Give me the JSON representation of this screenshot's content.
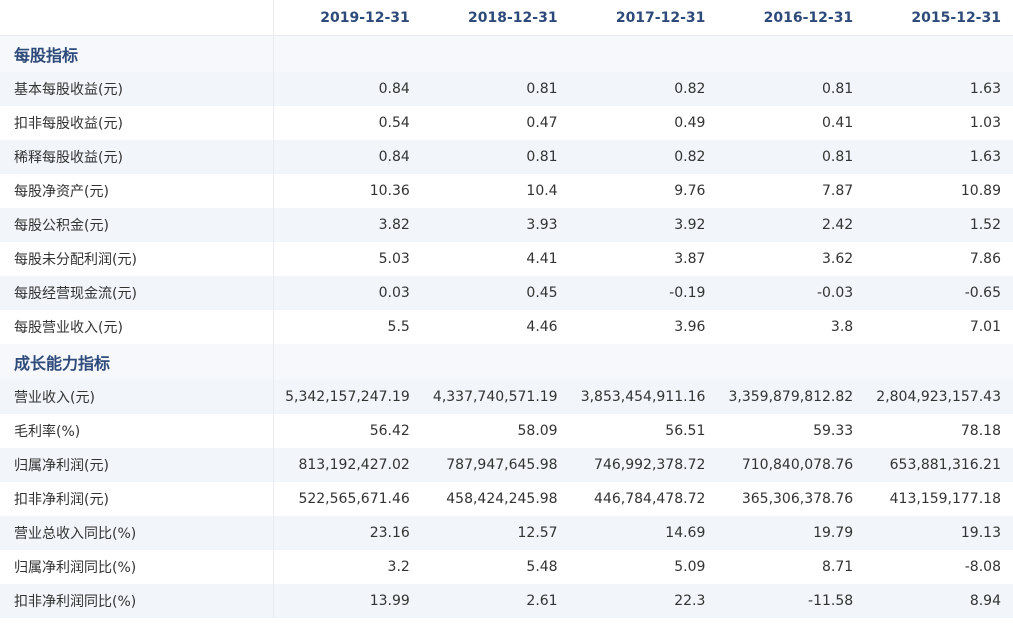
{
  "columns": [
    "2019-12-31",
    "2018-12-31",
    "2017-12-31",
    "2016-12-31",
    "2015-12-31"
  ],
  "sections": [
    {
      "title": "每股指标",
      "rows": [
        {
          "label": "基本每股收益(元)",
          "values": [
            "0.84",
            "0.81",
            "0.82",
            "0.81",
            "1.63"
          ]
        },
        {
          "label": "扣非每股收益(元)",
          "values": [
            "0.54",
            "0.47",
            "0.49",
            "0.41",
            "1.03"
          ]
        },
        {
          "label": "稀释每股收益(元)",
          "values": [
            "0.84",
            "0.81",
            "0.82",
            "0.81",
            "1.63"
          ]
        },
        {
          "label": "每股净资产(元)",
          "values": [
            "10.36",
            "10.4",
            "9.76",
            "7.87",
            "10.89"
          ]
        },
        {
          "label": "每股公积金(元)",
          "values": [
            "3.82",
            "3.93",
            "3.92",
            "2.42",
            "1.52"
          ]
        },
        {
          "label": "每股未分配利润(元)",
          "values": [
            "5.03",
            "4.41",
            "3.87",
            "3.62",
            "7.86"
          ]
        },
        {
          "label": "每股经营现金流(元)",
          "values": [
            "0.03",
            "0.45",
            "-0.19",
            "-0.03",
            "-0.65"
          ]
        },
        {
          "label": "每股营业收入(元)",
          "values": [
            "5.5",
            "4.46",
            "3.96",
            "3.8",
            "7.01"
          ]
        }
      ]
    },
    {
      "title": "成长能力指标",
      "rows": [
        {
          "label": "营业收入(元)",
          "values": [
            "5,342,157,247.19",
            "4,337,740,571.19",
            "3,853,454,911.16",
            "3,359,879,812.82",
            "2,804,923,157.43"
          ]
        },
        {
          "label": "毛利率(%)",
          "values": [
            "56.42",
            "58.09",
            "56.51",
            "59.33",
            "78.18"
          ]
        },
        {
          "label": "归属净利润(元)",
          "values": [
            "813,192,427.02",
            "787,947,645.98",
            "746,992,378.72",
            "710,840,078.76",
            "653,881,316.21"
          ]
        },
        {
          "label": "扣非净利润(元)",
          "values": [
            "522,565,671.46",
            "458,424,245.98",
            "446,784,478.72",
            "365,306,378.76",
            "413,159,177.18"
          ]
        },
        {
          "label": "营业总收入同比(%)",
          "values": [
            "23.16",
            "12.57",
            "14.69",
            "19.79",
            "19.13"
          ]
        },
        {
          "label": "归属净利润同比(%)",
          "values": [
            "3.2",
            "5.48",
            "5.09",
            "8.71",
            "-8.08"
          ]
        },
        {
          "label": "扣非净利润同比(%)",
          "values": [
            "13.99",
            "2.61",
            "22.3",
            "-11.58",
            "8.94"
          ]
        }
      ]
    }
  ]
}
